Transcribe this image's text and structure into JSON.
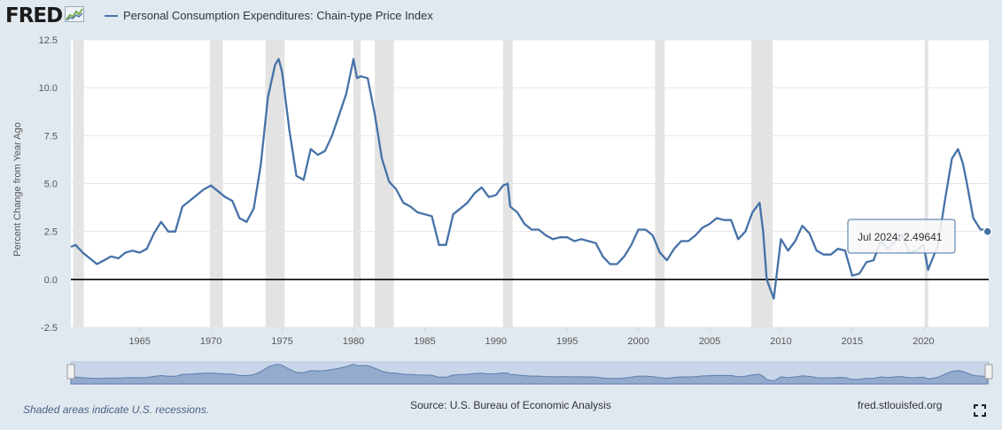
{
  "header": {
    "logo_text": "FRED",
    "logo_icon": "sparkline-chart-icon",
    "legend_label": "Personal Consumption Expenditures: Chain-type Price Index"
  },
  "colors": {
    "series": "#4572a7",
    "recession": "#e3e3e3",
    "background": "#e1e9f0",
    "plot_bg": "#ffffff"
  },
  "tooltip": {
    "label": "Jul 2024:",
    "value": "2.49641"
  },
  "footer": {
    "note": "Shaded areas indicate U.S. recessions.",
    "source": "Source: U.S. Bureau of Economic Analysis",
    "url": "fred.stlouisfed.org",
    "fullscreen_icon": "fullscreen-icon"
  },
  "chart_data": {
    "type": "line",
    "title": "",
    "xlabel": "",
    "ylabel": "Percent Change from Year Ago",
    "ylim": [
      -2.5,
      12.5
    ],
    "xlim": [
      1960.17,
      2024.58
    ],
    "yticks": [
      -2.5,
      0.0,
      2.5,
      5.0,
      7.5,
      10.0,
      12.5
    ],
    "ytick_labels": [
      "-2.5",
      "0.0",
      "2.5",
      "5.0",
      "7.5",
      "10.0",
      "12.5"
    ],
    "xticks": [
      1965,
      1970,
      1975,
      1980,
      1985,
      1990,
      1995,
      2000,
      2005,
      2010,
      2015,
      2020
    ],
    "xtick_labels": [
      "1965",
      "1970",
      "1975",
      "1980",
      "1985",
      "1990",
      "1995",
      "2000",
      "2005",
      "2010",
      "2015",
      "2020"
    ],
    "grid": true,
    "zero_line": true,
    "recessions": [
      [
        1960.33,
        1961.08
      ],
      [
        1969.92,
        1970.83
      ],
      [
        1973.83,
        1975.17
      ],
      [
        1980.0,
        1980.5
      ],
      [
        1981.5,
        1982.83
      ],
      [
        1990.5,
        1991.17
      ],
      [
        2001.17,
        2001.83
      ],
      [
        2007.92,
        2009.42
      ],
      [
        2020.08,
        2020.33
      ]
    ],
    "series": [
      {
        "name": "Personal Consumption Expenditures: Chain-type Price Index",
        "x": [
          1960.17,
          1960.5,
          1961.0,
          1961.5,
          1962.0,
          1962.5,
          1963.0,
          1963.5,
          1964.0,
          1964.5,
          1965.0,
          1965.5,
          1966.0,
          1966.5,
          1967.0,
          1967.5,
          1968.0,
          1968.5,
          1969.0,
          1969.5,
          1970.0,
          1970.5,
          1971.0,
          1971.5,
          1972.0,
          1972.5,
          1973.0,
          1973.5,
          1974.0,
          1974.5,
          1974.75,
          1975.0,
          1975.5,
          1976.0,
          1976.5,
          1977.0,
          1977.5,
          1978.0,
          1978.5,
          1979.0,
          1979.5,
          1980.0,
          1980.25,
          1980.5,
          1981.0,
          1981.5,
          1982.0,
          1982.5,
          1983.0,
          1983.5,
          1984.0,
          1984.5,
          1985.0,
          1985.5,
          1986.0,
          1986.5,
          1987.0,
          1987.5,
          1988.0,
          1988.5,
          1989.0,
          1989.5,
          1990.0,
          1990.5,
          1990.83,
          1991.0,
          1991.5,
          1992.0,
          1992.5,
          1993.0,
          1993.5,
          1994.0,
          1994.5,
          1995.0,
          1995.5,
          1996.0,
          1996.5,
          1997.0,
          1997.5,
          1998.0,
          1998.5,
          1999.0,
          1999.5,
          2000.0,
          2000.5,
          2001.0,
          2001.5,
          2002.0,
          2002.5,
          2003.0,
          2003.5,
          2004.0,
          2004.5,
          2005.0,
          2005.5,
          2006.0,
          2006.5,
          2007.0,
          2007.5,
          2008.0,
          2008.5,
          2008.75,
          2009.0,
          2009.5,
          2010.0,
          2010.5,
          2011.0,
          2011.5,
          2012.0,
          2012.5,
          2013.0,
          2013.5,
          2014.0,
          2014.5,
          2015.0,
          2015.5,
          2016.0,
          2016.5,
          2017.0,
          2017.5,
          2018.0,
          2018.5,
          2019.0,
          2019.5,
          2020.0,
          2020.33,
          2020.75,
          2021.0,
          2021.5,
          2022.0,
          2022.42,
          2022.75,
          2023.0,
          2023.5,
          2024.0,
          2024.33,
          2024.5
        ],
        "values": [
          1.7,
          1.8,
          1.4,
          1.1,
          0.8,
          1.0,
          1.2,
          1.1,
          1.4,
          1.5,
          1.4,
          1.6,
          2.4,
          3.0,
          2.5,
          2.5,
          3.8,
          4.1,
          4.4,
          4.7,
          4.9,
          4.6,
          4.3,
          4.1,
          3.2,
          3.0,
          3.7,
          6.0,
          9.5,
          11.2,
          11.5,
          10.8,
          7.8,
          5.4,
          5.2,
          6.8,
          6.5,
          6.7,
          7.5,
          8.6,
          9.7,
          11.5,
          10.5,
          10.6,
          10.5,
          8.6,
          6.3,
          5.1,
          4.7,
          4.0,
          3.8,
          3.5,
          3.4,
          3.3,
          1.8,
          1.8,
          3.4,
          3.7,
          4.0,
          4.5,
          4.8,
          4.3,
          4.4,
          4.9,
          5.0,
          3.8,
          3.5,
          2.9,
          2.6,
          2.6,
          2.3,
          2.1,
          2.2,
          2.2,
          2.0,
          2.1,
          2.0,
          1.9,
          1.2,
          0.8,
          0.8,
          1.2,
          1.8,
          2.6,
          2.6,
          2.3,
          1.4,
          1.0,
          1.6,
          2.0,
          2.0,
          2.3,
          2.7,
          2.9,
          3.2,
          3.1,
          3.1,
          2.1,
          2.5,
          3.5,
          4.0,
          2.5,
          0.0,
          -1.0,
          2.1,
          1.5,
          2.0,
          2.8,
          2.4,
          1.5,
          1.3,
          1.3,
          1.6,
          1.5,
          0.2,
          0.3,
          0.9,
          1.0,
          2.0,
          1.6,
          2.0,
          2.3,
          1.4,
          1.5,
          1.8,
          0.5,
          1.3,
          1.7,
          4.1,
          6.3,
          6.8,
          6.1,
          5.2,
          3.2,
          2.6,
          2.6,
          2.5
        ]
      }
    ]
  }
}
